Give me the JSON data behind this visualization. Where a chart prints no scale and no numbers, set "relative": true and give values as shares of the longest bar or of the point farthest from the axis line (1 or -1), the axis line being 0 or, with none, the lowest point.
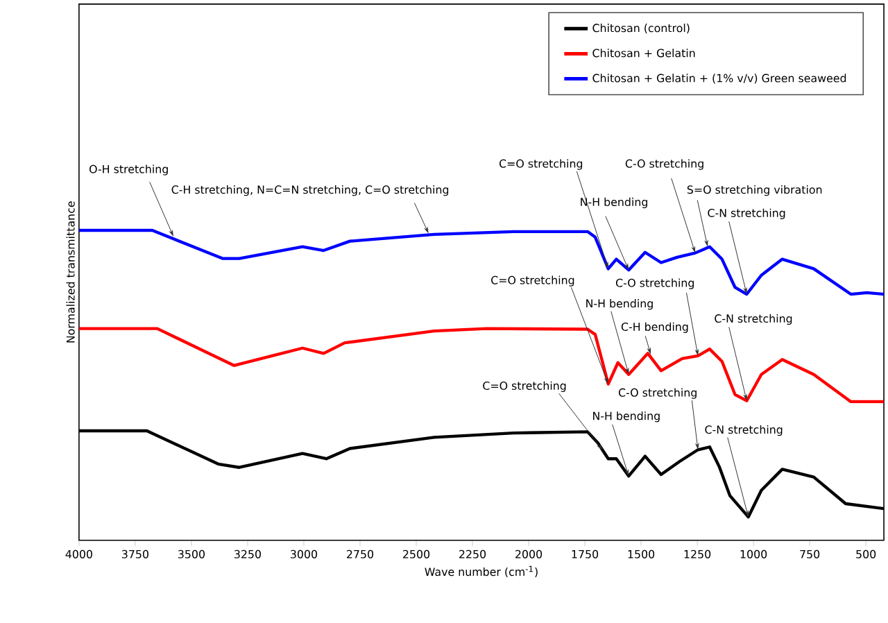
{
  "chart_data": {
    "type": "line",
    "relative": true,
    "xlabel": "Wave number (cm$^{-1}$)",
    "ylabel": "Normalized transmittance",
    "xlim": [
      4000,
      420
    ],
    "xticks": [
      4000,
      3750,
      3500,
      3250,
      3000,
      2750,
      2500,
      2250,
      2000,
      1750,
      1500,
      1250,
      1000,
      750,
      500
    ],
    "legend": "top right",
    "grid": false,
    "marker": "none",
    "line_style": "solid",
    "series": [
      {
        "name": "Chitosan (control)",
        "color": "#000000",
        "x": [
          4000,
          3698,
          3381,
          3287,
          3006,
          2900,
          2795,
          2421,
          2067,
          1738,
          1692,
          1646,
          1610,
          1555,
          1482,
          1411,
          1329,
          1247,
          1195,
          1152,
          1105,
          1023,
          965,
          872,
          732,
          590,
          420
        ],
        "values": [
          0.353,
          0.353,
          0.246,
          0.235,
          0.28,
          0.263,
          0.296,
          0.332,
          0.346,
          0.35,
          0.314,
          0.263,
          0.263,
          0.207,
          0.271,
          0.212,
          0.254,
          0.292,
          0.301,
          0.237,
          0.144,
          0.075,
          0.161,
          0.229,
          0.204,
          0.118,
          0.102
        ]
      },
      {
        "name": "Chitosan + Gelatin",
        "color": "#ff0000",
        "x": [
          4000,
          3652,
          3311,
          3006,
          2912,
          2818,
          2421,
          2187,
          1738,
          1704,
          1646,
          1603,
          1555,
          1470,
          1411,
          1317,
          1247,
          1195,
          1140,
          1082,
          1030,
          965,
          872,
          732,
          567,
          420
        ],
        "values": [
          0.683,
          0.683,
          0.564,
          0.62,
          0.603,
          0.637,
          0.675,
          0.683,
          0.681,
          0.664,
          0.504,
          0.573,
          0.535,
          0.603,
          0.547,
          0.586,
          0.595,
          0.617,
          0.577,
          0.47,
          0.45,
          0.535,
          0.583,
          0.535,
          0.447,
          0.447
        ]
      },
      {
        "name": "Chitosan + Gelatin + (1% v/v) Green seaweed",
        "color": "#0000ff",
        "x": [
          4000,
          3674,
          3360,
          3287,
          3006,
          2912,
          2795,
          2421,
          2067,
          1738,
          1704,
          1646,
          1610,
          1555,
          1482,
          1411,
          1340,
          1259,
          1195,
          1140,
          1082,
          1030,
          965,
          872,
          732,
          567,
          496,
          420
        ],
        "values": [
          1.0,
          1.0,
          0.909,
          0.909,
          0.947,
          0.935,
          0.965,
          0.987,
          0.996,
          0.996,
          0.978,
          0.876,
          0.907,
          0.872,
          0.929,
          0.896,
          0.913,
          0.927,
          0.947,
          0.907,
          0.816,
          0.794,
          0.855,
          0.907,
          0.876,
          0.794,
          0.799,
          0.794
        ]
      }
    ],
    "annotations": [
      {
        "text": "O-H stretching",
        "x": 3580,
        "y": 0.98
      },
      {
        "text": "C-H stretching, N=C=N stretching, C=O stretching",
        "x": 2445,
        "y": 0.99
      },
      {
        "text": "C=O stretching",
        "x": 1646,
        "y": 0.876
      },
      {
        "text": "N-H bending",
        "x": 1555,
        "y": 0.872
      },
      {
        "text": "C-O stretching",
        "x": 1259,
        "y": 0.927
      },
      {
        "text": "S=O stretching vibration",
        "x": 1204,
        "y": 0.947
      },
      {
        "text": "C-N stretching",
        "x": 1030,
        "y": 0.794
      },
      {
        "text": "C=O stretching",
        "x": 1646,
        "y": 0.504
      },
      {
        "text": "N-H bending",
        "x": 1555,
        "y": 0.535
      },
      {
        "text": "C-O stretching",
        "x": 1247,
        "y": 0.595
      },
      {
        "text": "C-H bending",
        "x": 1457,
        "y": 0.6
      },
      {
        "text": "C-N stretching",
        "x": 1030,
        "y": 0.45
      },
      {
        "text": "C=O stretching",
        "x": 1671,
        "y": 0.291
      },
      {
        "text": "N-H bending",
        "x": 1555,
        "y": 0.207
      },
      {
        "text": "C-O stretching",
        "x": 1247,
        "y": 0.292
      },
      {
        "text": "C-N stretching",
        "x": 1023,
        "y": 0.075
      }
    ]
  }
}
